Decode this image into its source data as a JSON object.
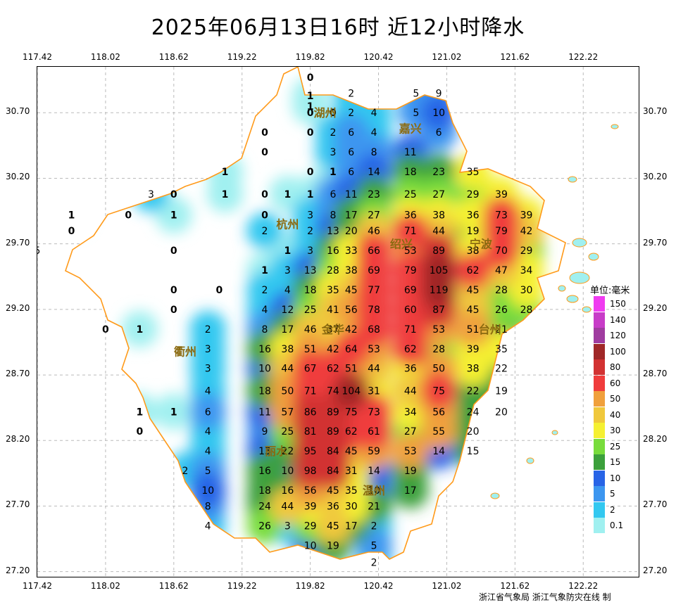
{
  "title": "2025年06月13日16时  近12小时降水",
  "lon_labels": [
    "117.42",
    "118.02",
    "118.62",
    "119.22",
    "119.82",
    "120.42",
    "121.02",
    "121.62",
    "122.22"
  ],
  "lat_labels": [
    "30.70",
    "30.20",
    "29.70",
    "29.20",
    "28.70",
    "28.20",
    "27.70",
    "27.20"
  ],
  "cities": [
    "湖州",
    "嘉兴",
    "杭州",
    "绍兴",
    "宁波",
    "金华",
    "衢州",
    "台州",
    "丽水",
    "温州"
  ],
  "legend": {
    "unit": "单位:毫米",
    "levels": [
      {
        "label": "150",
        "color": "#f03cf0"
      },
      {
        "label": "140",
        "color": "#c83cc8"
      },
      {
        "label": "120",
        "color": "#a03ca0"
      },
      {
        "label": "100",
        "color": "#a02828"
      },
      {
        "label": "80",
        "color": "#d23232"
      },
      {
        "label": "60",
        "color": "#f03c3c"
      },
      {
        "label": "50",
        "color": "#f0a03c"
      },
      {
        "label": "40",
        "color": "#f0c83c"
      },
      {
        "label": "30",
        "color": "#f5f032"
      },
      {
        "label": "25",
        "color": "#78dc3c"
      },
      {
        "label": "15",
        "color": "#3ca03c"
      },
      {
        "label": "10",
        "color": "#2864e6"
      },
      {
        "label": "5",
        "color": "#3c96f0"
      },
      {
        "label": "2",
        "color": "#32c8f0"
      },
      {
        "label": "0.1",
        "color": "#a0f0f0"
      }
    ]
  },
  "stations": [
    {
      "v": "0",
      "lon": 119.82,
      "lat": 30.97
    },
    {
      "v": "1",
      "lon": 119.82,
      "lat": 30.83
    },
    {
      "v": "1",
      "lon": 119.82,
      "lat": 30.75
    },
    {
      "v": "2",
      "lon": 120.18,
      "lat": 30.85
    },
    {
      "v": "5",
      "lon": 120.75,
      "lat": 30.85
    },
    {
      "v": "9",
      "lon": 120.95,
      "lat": 30.85
    },
    {
      "v": "0",
      "lon": 119.82,
      "lat": 30.7
    },
    {
      "v": "0",
      "lon": 120.02,
      "lat": 30.7
    },
    {
      "v": "2",
      "lon": 120.18,
      "lat": 30.7
    },
    {
      "v": "4",
      "lon": 120.38,
      "lat": 30.7
    },
    {
      "v": "5",
      "lon": 120.75,
      "lat": 30.7
    },
    {
      "v": "10",
      "lon": 120.95,
      "lat": 30.7
    },
    {
      "v": "0",
      "lon": 119.42,
      "lat": 30.55
    },
    {
      "v": "0",
      "lon": 119.82,
      "lat": 30.55
    },
    {
      "v": "2",
      "lon": 120.02,
      "lat": 30.55
    },
    {
      "v": "6",
      "lon": 120.18,
      "lat": 30.55
    },
    {
      "v": "4",
      "lon": 120.38,
      "lat": 30.55
    },
    {
      "v": "6",
      "lon": 120.95,
      "lat": 30.55
    },
    {
      "v": "0",
      "lon": 119.42,
      "lat": 30.4
    },
    {
      "v": "3",
      "lon": 120.02,
      "lat": 30.4
    },
    {
      "v": "6",
      "lon": 120.18,
      "lat": 30.4
    },
    {
      "v": "8",
      "lon": 120.38,
      "lat": 30.4
    },
    {
      "v": "11",
      "lon": 120.7,
      "lat": 30.4
    },
    {
      "v": "1",
      "lon": 119.07,
      "lat": 30.25
    },
    {
      "v": "0",
      "lon": 119.82,
      "lat": 30.25
    },
    {
      "v": "1",
      "lon": 120.02,
      "lat": 30.25
    },
    {
      "v": "6",
      "lon": 120.18,
      "lat": 30.25
    },
    {
      "v": "14",
      "lon": 120.38,
      "lat": 30.25
    },
    {
      "v": "18",
      "lon": 120.7,
      "lat": 30.25
    },
    {
      "v": "23",
      "lon": 120.95,
      "lat": 30.25
    },
    {
      "v": "35",
      "lon": 121.25,
      "lat": 30.25
    },
    {
      "v": "3",
      "lon": 118.42,
      "lat": 30.08
    },
    {
      "v": "0",
      "lon": 118.62,
      "lat": 30.08
    },
    {
      "v": "1",
      "lon": 119.07,
      "lat": 30.08
    },
    {
      "v": "0",
      "lon": 119.42,
      "lat": 30.08
    },
    {
      "v": "1",
      "lon": 119.62,
      "lat": 30.08
    },
    {
      "v": "1",
      "lon": 119.82,
      "lat": 30.08
    },
    {
      "v": "6",
      "lon": 120.02,
      "lat": 30.08
    },
    {
      "v": "11",
      "lon": 120.18,
      "lat": 30.08
    },
    {
      "v": "23",
      "lon": 120.38,
      "lat": 30.08
    },
    {
      "v": "25",
      "lon": 120.7,
      "lat": 30.08
    },
    {
      "v": "27",
      "lon": 120.95,
      "lat": 30.08
    },
    {
      "v": "29",
      "lon": 121.25,
      "lat": 30.08
    },
    {
      "v": "39",
      "lon": 121.5,
      "lat": 30.08
    },
    {
      "v": "1",
      "lon": 117.72,
      "lat": 29.92
    },
    {
      "v": "0",
      "lon": 118.22,
      "lat": 29.92
    },
    {
      "v": "1",
      "lon": 118.62,
      "lat": 29.92
    },
    {
      "v": "0",
      "lon": 119.42,
      "lat": 29.92
    },
    {
      "v": "3",
      "lon": 119.82,
      "lat": 29.92
    },
    {
      "v": "8",
      "lon": 120.02,
      "lat": 29.92
    },
    {
      "v": "17",
      "lon": 120.18,
      "lat": 29.92
    },
    {
      "v": "27",
      "lon": 120.38,
      "lat": 29.92
    },
    {
      "v": "36",
      "lon": 120.7,
      "lat": 29.92
    },
    {
      "v": "38",
      "lon": 120.95,
      "lat": 29.92
    },
    {
      "v": "36",
      "lon": 121.25,
      "lat": 29.92
    },
    {
      "v": "73",
      "lon": 121.5,
      "lat": 29.92
    },
    {
      "v": "39",
      "lon": 121.72,
      "lat": 29.92
    },
    {
      "v": "0",
      "lon": 117.72,
      "lat": 29.8
    },
    {
      "v": "2",
      "lon": 119.42,
      "lat": 29.8
    },
    {
      "v": "2",
      "lon": 119.82,
      "lat": 29.8
    },
    {
      "v": "13",
      "lon": 120.02,
      "lat": 29.8
    },
    {
      "v": "20",
      "lon": 120.18,
      "lat": 29.8
    },
    {
      "v": "46",
      "lon": 120.38,
      "lat": 29.8
    },
    {
      "v": "71",
      "lon": 120.7,
      "lat": 29.8
    },
    {
      "v": "44",
      "lon": 120.95,
      "lat": 29.8
    },
    {
      "v": "19",
      "lon": 121.25,
      "lat": 29.8
    },
    {
      "v": "79",
      "lon": 121.5,
      "lat": 29.8
    },
    {
      "v": "42",
      "lon": 121.72,
      "lat": 29.8
    },
    {
      "v": "5",
      "lon": 117.42,
      "lat": 29.65
    },
    {
      "v": "0",
      "lon": 118.62,
      "lat": 29.65
    },
    {
      "v": "1",
      "lon": 119.62,
      "lat": 29.65
    },
    {
      "v": "3",
      "lon": 119.82,
      "lat": 29.65
    },
    {
      "v": "16",
      "lon": 120.02,
      "lat": 29.65
    },
    {
      "v": "33",
      "lon": 120.18,
      "lat": 29.65
    },
    {
      "v": "66",
      "lon": 120.38,
      "lat": 29.65
    },
    {
      "v": "53",
      "lon": 120.7,
      "lat": 29.65
    },
    {
      "v": "89",
      "lon": 120.95,
      "lat": 29.65
    },
    {
      "v": "38",
      "lon": 121.25,
      "lat": 29.65
    },
    {
      "v": "70",
      "lon": 121.5,
      "lat": 29.65
    },
    {
      "v": "29",
      "lon": 121.72,
      "lat": 29.65
    },
    {
      "v": "1",
      "lon": 119.42,
      "lat": 29.5
    },
    {
      "v": "3",
      "lon": 119.62,
      "lat": 29.5
    },
    {
      "v": "13",
      "lon": 119.82,
      "lat": 29.5
    },
    {
      "v": "28",
      "lon": 120.02,
      "lat": 29.5
    },
    {
      "v": "38",
      "lon": 120.18,
      "lat": 29.5
    },
    {
      "v": "69",
      "lon": 120.38,
      "lat": 29.5
    },
    {
      "v": "79",
      "lon": 120.7,
      "lat": 29.5
    },
    {
      "v": "105",
      "lon": 120.95,
      "lat": 29.5
    },
    {
      "v": "62",
      "lon": 121.25,
      "lat": 29.5
    },
    {
      "v": "47",
      "lon": 121.5,
      "lat": 29.5
    },
    {
      "v": "34",
      "lon": 121.72,
      "lat": 29.5
    },
    {
      "v": "0",
      "lon": 118.62,
      "lat": 29.35
    },
    {
      "v": "0",
      "lon": 119.02,
      "lat": 29.35
    },
    {
      "v": "2",
      "lon": 119.42,
      "lat": 29.35
    },
    {
      "v": "4",
      "lon": 119.62,
      "lat": 29.35
    },
    {
      "v": "18",
      "lon": 119.82,
      "lat": 29.35
    },
    {
      "v": "35",
      "lon": 120.02,
      "lat": 29.35
    },
    {
      "v": "45",
      "lon": 120.18,
      "lat": 29.35
    },
    {
      "v": "77",
      "lon": 120.38,
      "lat": 29.35
    },
    {
      "v": "69",
      "lon": 120.7,
      "lat": 29.35
    },
    {
      "v": "119",
      "lon": 120.95,
      "lat": 29.35
    },
    {
      "v": "45",
      "lon": 121.25,
      "lat": 29.35
    },
    {
      "v": "28",
      "lon": 121.5,
      "lat": 29.35
    },
    {
      "v": "30",
      "lon": 121.72,
      "lat": 29.35
    },
    {
      "v": "0",
      "lon": 118.62,
      "lat": 29.2
    },
    {
      "v": "4",
      "lon": 119.42,
      "lat": 29.2
    },
    {
      "v": "12",
      "lon": 119.62,
      "lat": 29.2
    },
    {
      "v": "25",
      "lon": 119.82,
      "lat": 29.2
    },
    {
      "v": "41",
      "lon": 120.02,
      "lat": 29.2
    },
    {
      "v": "56",
      "lon": 120.18,
      "lat": 29.2
    },
    {
      "v": "78",
      "lon": 120.38,
      "lat": 29.2
    },
    {
      "v": "60",
      "lon": 120.7,
      "lat": 29.2
    },
    {
      "v": "87",
      "lon": 120.95,
      "lat": 29.2
    },
    {
      "v": "45",
      "lon": 121.25,
      "lat": 29.2
    },
    {
      "v": "26",
      "lon": 121.5,
      "lat": 29.2
    },
    {
      "v": "28",
      "lon": 121.72,
      "lat": 29.2
    },
    {
      "v": "0",
      "lon": 118.02,
      "lat": 29.05
    },
    {
      "v": "1",
      "lon": 118.32,
      "lat": 29.05
    },
    {
      "v": "2",
      "lon": 118.92,
      "lat": 29.05
    },
    {
      "v": "8",
      "lon": 119.42,
      "lat": 29.05
    },
    {
      "v": "17",
      "lon": 119.62,
      "lat": 29.05
    },
    {
      "v": "46",
      "lon": 119.82,
      "lat": 29.05
    },
    {
      "v": "37",
      "lon": 120.02,
      "lat": 29.05
    },
    {
      "v": "42",
      "lon": 120.18,
      "lat": 29.05
    },
    {
      "v": "68",
      "lon": 120.38,
      "lat": 29.05
    },
    {
      "v": "71",
      "lon": 120.7,
      "lat": 29.05
    },
    {
      "v": "53",
      "lon": 120.95,
      "lat": 29.05
    },
    {
      "v": "51",
      "lon": 121.25,
      "lat": 29.05
    },
    {
      "v": "21",
      "lon": 121.5,
      "lat": 29.05
    },
    {
      "v": "3",
      "lon": 118.92,
      "lat": 28.9
    },
    {
      "v": "16",
      "lon": 119.42,
      "lat": 28.9
    },
    {
      "v": "38",
      "lon": 119.62,
      "lat": 28.9
    },
    {
      "v": "51",
      "lon": 119.82,
      "lat": 28.9
    },
    {
      "v": "42",
      "lon": 120.02,
      "lat": 28.9
    },
    {
      "v": "64",
      "lon": 120.18,
      "lat": 28.9
    },
    {
      "v": "53",
      "lon": 120.38,
      "lat": 28.9
    },
    {
      "v": "62",
      "lon": 120.7,
      "lat": 28.9
    },
    {
      "v": "28",
      "lon": 120.95,
      "lat": 28.9
    },
    {
      "v": "39",
      "lon": 121.25,
      "lat": 28.9
    },
    {
      "v": "35",
      "lon": 121.5,
      "lat": 28.9
    },
    {
      "v": "3",
      "lon": 118.92,
      "lat": 28.75
    },
    {
      "v": "10",
      "lon": 119.42,
      "lat": 28.75
    },
    {
      "v": "44",
      "lon": 119.62,
      "lat": 28.75
    },
    {
      "v": "67",
      "lon": 119.82,
      "lat": 28.75
    },
    {
      "v": "62",
      "lon": 120.02,
      "lat": 28.75
    },
    {
      "v": "51",
      "lon": 120.18,
      "lat": 28.75
    },
    {
      "v": "44",
      "lon": 120.38,
      "lat": 28.75
    },
    {
      "v": "36",
      "lon": 120.7,
      "lat": 28.75
    },
    {
      "v": "50",
      "lon": 120.95,
      "lat": 28.75
    },
    {
      "v": "38",
      "lon": 121.25,
      "lat": 28.75
    },
    {
      "v": "22",
      "lon": 121.5,
      "lat": 28.75
    },
    {
      "v": "4",
      "lon": 118.92,
      "lat": 28.58
    },
    {
      "v": "18",
      "lon": 119.42,
      "lat": 28.58
    },
    {
      "v": "50",
      "lon": 119.62,
      "lat": 28.58
    },
    {
      "v": "71",
      "lon": 119.82,
      "lat": 28.58
    },
    {
      "v": "74",
      "lon": 120.02,
      "lat": 28.58
    },
    {
      "v": "104",
      "lon": 120.18,
      "lat": 28.58
    },
    {
      "v": "31",
      "lon": 120.38,
      "lat": 28.58
    },
    {
      "v": "44",
      "lon": 120.7,
      "lat": 28.58
    },
    {
      "v": "75",
      "lon": 120.95,
      "lat": 28.58
    },
    {
      "v": "22",
      "lon": 121.25,
      "lat": 28.58
    },
    {
      "v": "19",
      "lon": 121.5,
      "lat": 28.58
    },
    {
      "v": "1",
      "lon": 118.32,
      "lat": 28.42
    },
    {
      "v": "1",
      "lon": 118.62,
      "lat": 28.42
    },
    {
      "v": "6",
      "lon": 118.92,
      "lat": 28.42
    },
    {
      "v": "11",
      "lon": 119.42,
      "lat": 28.42
    },
    {
      "v": "57",
      "lon": 119.62,
      "lat": 28.42
    },
    {
      "v": "86",
      "lon": 119.82,
      "lat": 28.42
    },
    {
      "v": "89",
      "lon": 120.02,
      "lat": 28.42
    },
    {
      "v": "75",
      "lon": 120.18,
      "lat": 28.42
    },
    {
      "v": "73",
      "lon": 120.38,
      "lat": 28.42
    },
    {
      "v": "34",
      "lon": 120.7,
      "lat": 28.42
    },
    {
      "v": "56",
      "lon": 120.95,
      "lat": 28.42
    },
    {
      "v": "24",
      "lon": 121.25,
      "lat": 28.42
    },
    {
      "v": "20",
      "lon": 121.5,
      "lat": 28.42
    },
    {
      "v": "0",
      "lon": 118.32,
      "lat": 28.27
    },
    {
      "v": "4",
      "lon": 118.92,
      "lat": 28.27
    },
    {
      "v": "9",
      "lon": 119.42,
      "lat": 28.27
    },
    {
      "v": "25",
      "lon": 119.62,
      "lat": 28.27
    },
    {
      "v": "81",
      "lon": 119.82,
      "lat": 28.27
    },
    {
      "v": "89",
      "lon": 120.02,
      "lat": 28.27
    },
    {
      "v": "62",
      "lon": 120.18,
      "lat": 28.27
    },
    {
      "v": "61",
      "lon": 120.38,
      "lat": 28.27
    },
    {
      "v": "27",
      "lon": 120.7,
      "lat": 28.27
    },
    {
      "v": "55",
      "lon": 120.95,
      "lat": 28.27
    },
    {
      "v": "20",
      "lon": 121.25,
      "lat": 28.27
    },
    {
      "v": "4",
      "lon": 118.92,
      "lat": 28.12
    },
    {
      "v": "13",
      "lon": 119.42,
      "lat": 28.12
    },
    {
      "v": "22",
      "lon": 119.62,
      "lat": 28.12
    },
    {
      "v": "95",
      "lon": 119.82,
      "lat": 28.12
    },
    {
      "v": "84",
      "lon": 120.02,
      "lat": 28.12
    },
    {
      "v": "45",
      "lon": 120.18,
      "lat": 28.12
    },
    {
      "v": "59",
      "lon": 120.38,
      "lat": 28.12
    },
    {
      "v": "53",
      "lon": 120.7,
      "lat": 28.12
    },
    {
      "v": "14",
      "lon": 120.95,
      "lat": 28.12
    },
    {
      "v": "15",
      "lon": 121.25,
      "lat": 28.12
    },
    {
      "v": "2",
      "lon": 118.72,
      "lat": 27.97
    },
    {
      "v": "5",
      "lon": 118.92,
      "lat": 27.97
    },
    {
      "v": "16",
      "lon": 119.42,
      "lat": 27.97
    },
    {
      "v": "10",
      "lon": 119.62,
      "lat": 27.97
    },
    {
      "v": "98",
      "lon": 119.82,
      "lat": 27.97
    },
    {
      "v": "84",
      "lon": 120.02,
      "lat": 27.97
    },
    {
      "v": "31",
      "lon": 120.18,
      "lat": 27.97
    },
    {
      "v": "14",
      "lon": 120.38,
      "lat": 27.97
    },
    {
      "v": "19",
      "lon": 120.7,
      "lat": 27.97
    },
    {
      "v": "10",
      "lon": 118.92,
      "lat": 27.82
    },
    {
      "v": "18",
      "lon": 119.42,
      "lat": 27.82
    },
    {
      "v": "16",
      "lon": 119.62,
      "lat": 27.82
    },
    {
      "v": "56",
      "lon": 119.82,
      "lat": 27.82
    },
    {
      "v": "45",
      "lon": 120.02,
      "lat": 27.82
    },
    {
      "v": "35",
      "lon": 120.18,
      "lat": 27.82
    },
    {
      "v": "10",
      "lon": 120.38,
      "lat": 27.82
    },
    {
      "v": "17",
      "lon": 120.7,
      "lat": 27.82
    },
    {
      "v": "8",
      "lon": 118.92,
      "lat": 27.7
    },
    {
      "v": "24",
      "lon": 119.42,
      "lat": 27.7
    },
    {
      "v": "44",
      "lon": 119.62,
      "lat": 27.7
    },
    {
      "v": "39",
      "lon": 119.82,
      "lat": 27.7
    },
    {
      "v": "36",
      "lon": 120.02,
      "lat": 27.7
    },
    {
      "v": "30",
      "lon": 120.18,
      "lat": 27.7
    },
    {
      "v": "21",
      "lon": 120.38,
      "lat": 27.7
    },
    {
      "v": "4",
      "lon": 118.92,
      "lat": 27.55
    },
    {
      "v": "26",
      "lon": 119.42,
      "lat": 27.55
    },
    {
      "v": "3",
      "lon": 119.62,
      "lat": 27.55
    },
    {
      "v": "29",
      "lon": 119.82,
      "lat": 27.55
    },
    {
      "v": "45",
      "lon": 120.02,
      "lat": 27.55
    },
    {
      "v": "17",
      "lon": 120.18,
      "lat": 27.55
    },
    {
      "v": "2",
      "lon": 120.38,
      "lat": 27.55
    },
    {
      "v": "10",
      "lon": 119.82,
      "lat": 27.4
    },
    {
      "v": "19",
      "lon": 120.02,
      "lat": 27.4
    },
    {
      "v": "5",
      "lon": 120.38,
      "lat": 27.4
    },
    {
      "v": "2",
      "lon": 120.38,
      "lat": 27.27
    }
  ]
}
